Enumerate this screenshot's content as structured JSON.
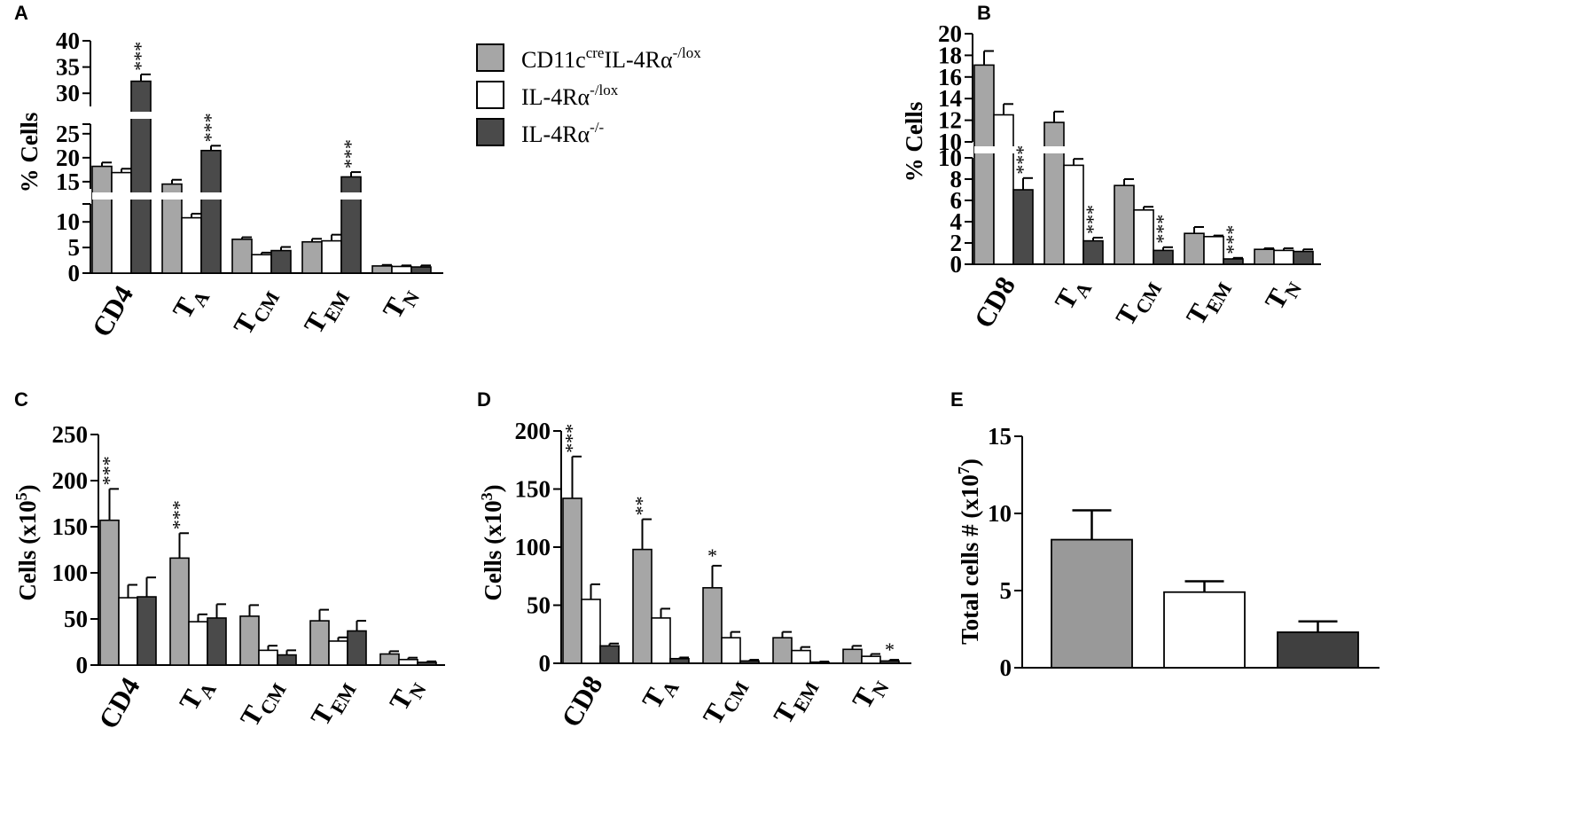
{
  "colors": {
    "gray": "#a6a6a6",
    "white": "#ffffff",
    "dark": "#4a4a4a",
    "darkE": "#404040",
    "grayE": "#999999",
    "stroke": "#000000"
  },
  "legend": {
    "items": [
      {
        "key": "gray",
        "main": "CD11c",
        "sup1": "cre",
        "mid": "IL-4Rα",
        "sup2": "-/lox"
      },
      {
        "key": "white",
        "main": "",
        "sup1": "",
        "mid": "IL-4Rα",
        "sup2": "-/lox"
      },
      {
        "key": "dark",
        "main": "",
        "sup1": "",
        "mid": "IL-4Rα",
        "sup2": "-/-"
      }
    ]
  },
  "chart_data": [
    {
      "id": "A",
      "panel_label": "A",
      "type": "bar",
      "ylabel": "% Cells",
      "broken_axis": true,
      "segments": [
        {
          "range": [
            0,
            13.5
          ],
          "ticks": [
            0,
            5,
            10
          ]
        },
        {
          "range": [
            13.5,
            27
          ],
          "ticks": [
            15,
            20,
            25
          ]
        },
        {
          "range": [
            27.5,
            40
          ],
          "ticks": [
            30,
            35,
            40
          ]
        }
      ],
      "categories": [
        {
          "main": "CD4",
          "sub": ""
        },
        {
          "main": "T",
          "sub": "A"
        },
        {
          "main": "T",
          "sub": "CM"
        },
        {
          "main": "T",
          "sub": "EM"
        },
        {
          "main": "T",
          "sub": "N"
        }
      ],
      "series": [
        {
          "key": "gray",
          "values": [
            18.2,
            14.5,
            6.6,
            6.1,
            1.4
          ],
          "errors": [
            0.8,
            0.9,
            0.4,
            0.6,
            0.2
          ]
        },
        {
          "key": "white",
          "values": [
            16.9,
            10.8,
            3.6,
            6.3,
            1.3
          ],
          "errors": [
            0.8,
            0.8,
            0.4,
            1.2,
            0.2
          ]
        },
        {
          "key": "dark",
          "values": [
            32.3,
            21.5,
            4.4,
            16.0,
            1.2
          ],
          "errors": [
            1.3,
            1.0,
            0.7,
            1.0,
            0.3
          ]
        }
      ],
      "annotations": [
        {
          "series": 2,
          "cat": 0,
          "text": "***"
        },
        {
          "series": 2,
          "cat": 1,
          "text": "***"
        },
        {
          "series": 2,
          "cat": 3,
          "text": "***"
        }
      ]
    },
    {
      "id": "B",
      "panel_label": "B",
      "type": "bar",
      "ylabel": "% Cells",
      "broken_axis": true,
      "segments": [
        {
          "range": [
            0,
            10
          ],
          "ticks": [
            0,
            2,
            4,
            6,
            8,
            10
          ]
        },
        {
          "range": [
            10,
            20
          ],
          "ticks": [
            10,
            12,
            14,
            16,
            18,
            20
          ]
        }
      ],
      "categories": [
        {
          "main": "CD8",
          "sub": ""
        },
        {
          "main": "T",
          "sub": "A"
        },
        {
          "main": "T",
          "sub": "CM"
        },
        {
          "main": "T",
          "sub": "EM"
        },
        {
          "main": "T",
          "sub": "N"
        }
      ],
      "series": [
        {
          "key": "gray",
          "values": [
            17.1,
            11.8,
            7.4,
            2.9,
            1.4
          ],
          "errors": [
            1.3,
            1.0,
            0.6,
            0.6,
            0.1
          ]
        },
        {
          "key": "white",
          "values": [
            12.5,
            9.3,
            5.1,
            2.6,
            1.3
          ],
          "errors": [
            1.0,
            0.6,
            0.3,
            0.1,
            0.2
          ]
        },
        {
          "key": "dark",
          "values": [
            7.0,
            2.2,
            1.3,
            0.5,
            1.2
          ],
          "errors": [
            1.1,
            0.3,
            0.3,
            0.1,
            0.2
          ]
        }
      ],
      "annotations": [
        {
          "series": 2,
          "cat": 0,
          "text": "***"
        },
        {
          "series": 2,
          "cat": 1,
          "text": "***"
        },
        {
          "series": 2,
          "cat": 2,
          "text": "***"
        },
        {
          "series": 2,
          "cat": 3,
          "text": "***"
        }
      ]
    },
    {
      "id": "C",
      "panel_label": "C",
      "type": "bar",
      "ylabel": "Cells (x10",
      "ylabel_sup": "5",
      "ylabel_end": ")",
      "ylim": [
        0,
        250
      ],
      "yticks": [
        0,
        50,
        100,
        150,
        200,
        250
      ],
      "categories": [
        {
          "main": "CD4",
          "sub": ""
        },
        {
          "main": "T",
          "sub": "A"
        },
        {
          "main": "T",
          "sub": "CM"
        },
        {
          "main": "T",
          "sub": "EM"
        },
        {
          "main": "T",
          "sub": "N"
        }
      ],
      "series": [
        {
          "key": "gray",
          "values": [
            157,
            116,
            53,
            48,
            12
          ],
          "errors": [
            34,
            27,
            12,
            12,
            3
          ]
        },
        {
          "key": "white",
          "values": [
            73,
            47,
            16,
            26,
            6
          ],
          "errors": [
            14,
            8,
            5,
            4,
            2
          ]
        },
        {
          "key": "dark",
          "values": [
            74,
            51,
            11,
            37,
            3
          ],
          "errors": [
            21,
            15,
            5,
            11,
            1
          ]
        }
      ],
      "annotations": [
        {
          "series": 0,
          "cat": 0,
          "text": "***"
        },
        {
          "series": 0,
          "cat": 1,
          "text": "***"
        }
      ]
    },
    {
      "id": "D",
      "panel_label": "D",
      "type": "bar",
      "ylabel": "Cells (x10",
      "ylabel_sup": "3",
      "ylabel_end": ")",
      "ylim": [
        0,
        200
      ],
      "yticks": [
        0,
        50,
        100,
        150,
        200
      ],
      "categories": [
        {
          "main": "CD8",
          "sub": ""
        },
        {
          "main": "T",
          "sub": "A"
        },
        {
          "main": "T",
          "sub": "CM"
        },
        {
          "main": "T",
          "sub": "EM"
        },
        {
          "main": "T",
          "sub": "N"
        }
      ],
      "series": [
        {
          "key": "gray",
          "values": [
            142,
            98,
            65,
            22,
            12
          ],
          "errors": [
            36,
            26,
            19,
            5,
            3
          ]
        },
        {
          "key": "white",
          "values": [
            55,
            39,
            22,
            11,
            6
          ],
          "errors": [
            13,
            8,
            5,
            3,
            2
          ]
        },
        {
          "key": "dark",
          "values": [
            15,
            4,
            2,
            1,
            2
          ],
          "errors": [
            2,
            1,
            1,
            0.5,
            1
          ]
        }
      ],
      "annotations": [
        {
          "series": 0,
          "cat": 0,
          "text": "***"
        },
        {
          "series": 0,
          "cat": 1,
          "text": "**"
        },
        {
          "series": 0,
          "cat": 2,
          "text": "*"
        },
        {
          "series": 2,
          "cat": 4,
          "text": "*"
        }
      ]
    },
    {
      "id": "E",
      "panel_label": "E",
      "type": "bar",
      "ylabel": "Total cells # (x10",
      "ylabel_sup": "7",
      "ylabel_end": ")",
      "ylim": [
        0,
        15
      ],
      "yticks": [
        0,
        5,
        10,
        15
      ],
      "categories": [
        {
          "main": "",
          "sub": ""
        },
        {
          "main": "",
          "sub": ""
        },
        {
          "main": "",
          "sub": ""
        }
      ],
      "bars": [
        {
          "key": "grayE",
          "value": 8.3,
          "error": 1.9
        },
        {
          "key": "white",
          "value": 4.9,
          "error": 0.7
        },
        {
          "key": "darkE",
          "value": 2.3,
          "error": 0.7
        }
      ]
    }
  ]
}
